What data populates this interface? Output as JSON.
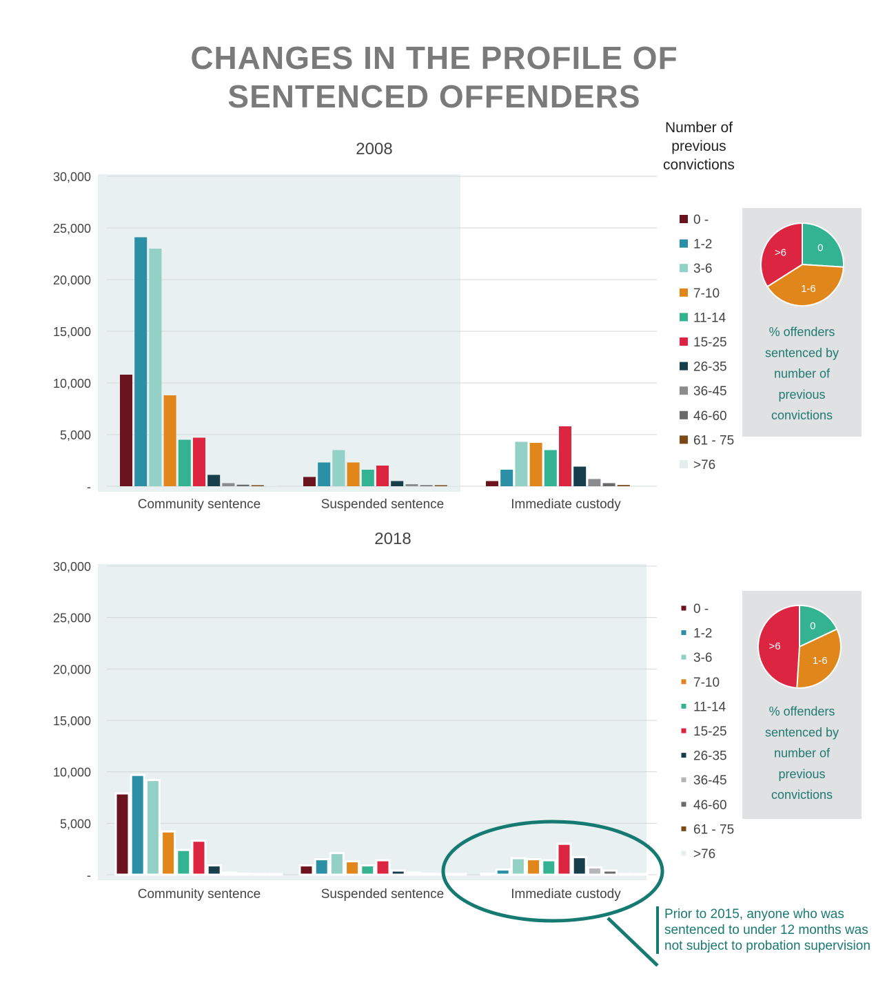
{
  "page": {
    "title_line1": "CHANGES IN THE PROFILE OF",
    "title_line2": "SENTENCED OFFENDERS",
    "legend_heading": "Number of previous convictions",
    "annotation": "Prior to 2015, anyone who was sentenced to under 12 months was not subject to probation supervision"
  },
  "chart_data": [
    {
      "type": "bar",
      "title": "2008",
      "xlabel": "",
      "ylabel": "",
      "ylim": [
        0,
        30000
      ],
      "yticks": [
        "-",
        "5,000",
        "10,000",
        "15,000",
        "20,000",
        "25,000",
        "30,000"
      ],
      "grid": true,
      "categories": [
        "Community sentence",
        "Suspended sentence",
        "Immediate custody"
      ],
      "legend_position": "right",
      "series": [
        {
          "name": "0 -",
          "color": "#6b1420",
          "values": [
            10800,
            900,
            500
          ]
        },
        {
          "name": "1-2",
          "color": "#2b8fa6",
          "values": [
            24100,
            2300,
            1600
          ]
        },
        {
          "name": "3-6",
          "color": "#93d0c6",
          "values": [
            23000,
            3500,
            4300
          ]
        },
        {
          "name": "7-10",
          "color": "#e0861a",
          "values": [
            8800,
            2300,
            4200
          ]
        },
        {
          "name": "11-14",
          "color": "#33b392",
          "values": [
            4500,
            1600,
            3500
          ]
        },
        {
          "name": "15-25",
          "color": "#dc2540",
          "values": [
            4700,
            2000,
            5800
          ]
        },
        {
          "name": "26-35",
          "color": "#173f4b",
          "values": [
            1100,
            500,
            1900
          ]
        },
        {
          "name": "36-45",
          "color": "#8a8c8e",
          "values": [
            300,
            200,
            700
          ]
        },
        {
          "name": "46-60",
          "color": "#6a6a6c",
          "values": [
            150,
            100,
            300
          ]
        },
        {
          "name": "61 - 75",
          "color": "#7a4a1a",
          "values": [
            100,
            100,
            120
          ]
        },
        {
          "name": ">76",
          "color": "#e4eeef",
          "values": [
            30,
            30,
            50
          ]
        }
      ],
      "pie": {
        "caption": "% offenders sentenced by number of previous convictions",
        "slices": [
          {
            "label": "0",
            "value": 26,
            "color": "#33b392"
          },
          {
            "label": "1-6",
            "value": 40,
            "color": "#e0861a"
          },
          {
            "label": ">6",
            "value": 34,
            "color": "#dc2540"
          }
        ]
      }
    },
    {
      "type": "bar",
      "title": "2018",
      "xlabel": "",
      "ylabel": "",
      "ylim": [
        0,
        30000
      ],
      "yticks": [
        "-",
        "5,000",
        "10,000",
        "15,000",
        "20,000",
        "25,000",
        "30,000"
      ],
      "grid": true,
      "categories": [
        "Community sentence",
        "Suspended sentence",
        "Immediate custody"
      ],
      "legend_position": "right",
      "series": [
        {
          "name": "0 -",
          "color": "#6b1420",
          "values": [
            7900,
            900,
            100
          ]
        },
        {
          "name": "1-2",
          "color": "#2b8fa6",
          "values": [
            9700,
            1500,
            500
          ]
        },
        {
          "name": "3-6",
          "color": "#93d0c6",
          "values": [
            9200,
            2100,
            1600
          ]
        },
        {
          "name": "7-10",
          "color": "#e0861a",
          "values": [
            4200,
            1300,
            1500
          ]
        },
        {
          "name": "11-14",
          "color": "#33b392",
          "values": [
            2400,
            900,
            1400
          ]
        },
        {
          "name": "15-25",
          "color": "#dc2540",
          "values": [
            3300,
            1400,
            3000
          ]
        },
        {
          "name": "26-35",
          "color": "#173f4b",
          "values": [
            900,
            400,
            1700
          ]
        },
        {
          "name": "36-45",
          "color": "#b4b6b8",
          "values": [
            200,
            200,
            700
          ]
        },
        {
          "name": "46-60",
          "color": "#6a6a6c",
          "values": [
            100,
            100,
            400
          ]
        },
        {
          "name": "61 - 75",
          "color": "#7a4a1a",
          "values": [
            50,
            50,
            50
          ]
        },
        {
          "name": ">76",
          "color": "#e4eeef",
          "values": [
            50,
            50,
            50
          ]
        }
      ],
      "pie": {
        "caption": "% offenders sentenced by number of previous convictions",
        "slices": [
          {
            "label": "0",
            "value": 18,
            "color": "#33b392"
          },
          {
            "label": "1-6",
            "value": 33,
            "color": "#e0861a"
          },
          {
            "label": ">6",
            "value": 49,
            "color": "#dc2540"
          }
        ]
      }
    }
  ]
}
